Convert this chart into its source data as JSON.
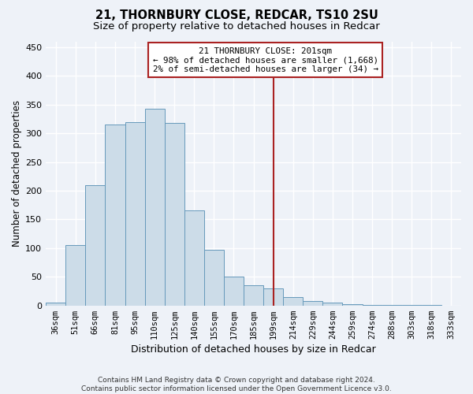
{
  "title1": "21, THORNBURY CLOSE, REDCAR, TS10 2SU",
  "title2": "Size of property relative to detached houses in Redcar",
  "xlabel": "Distribution of detached houses by size in Redcar",
  "ylabel": "Number of detached properties",
  "footer1": "Contains HM Land Registry data © Crown copyright and database right 2024.",
  "footer2": "Contains public sector information licensed under the Open Government Licence v3.0.",
  "categories": [
    "36sqm",
    "51sqm",
    "66sqm",
    "81sqm",
    "95sqm",
    "110sqm",
    "125sqm",
    "140sqm",
    "155sqm",
    "170sqm",
    "185sqm",
    "199sqm",
    "214sqm",
    "229sqm",
    "244sqm",
    "259sqm",
    "274sqm",
    "288sqm",
    "303sqm",
    "318sqm",
    "333sqm"
  ],
  "values": [
    5,
    105,
    210,
    315,
    320,
    343,
    318,
    165,
    97,
    50,
    35,
    30,
    15,
    8,
    5,
    3,
    1,
    1,
    1,
    1,
    0
  ],
  "bar_color": "#ccdce8",
  "bar_edge_color": "#6699bb",
  "bar_edge_width": 0.7,
  "vline_x_idx": 11,
  "vline_color": "#aa2222",
  "annotation_text": "21 THORNBURY CLOSE: 201sqm\n← 98% of detached houses are smaller (1,668)\n2% of semi-detached houses are larger (34) →",
  "annotation_box_color": "#aa2222",
  "ylim": [
    0,
    460
  ],
  "yticks": [
    0,
    50,
    100,
    150,
    200,
    250,
    300,
    350,
    400,
    450
  ],
  "background_color": "#eef2f8",
  "grid_color": "#ffffff",
  "title1_fontsize": 10.5,
  "title2_fontsize": 9.5,
  "ylabel_fontsize": 8.5,
  "xlabel_fontsize": 9,
  "tick_fontsize": 7.5,
  "footer_fontsize": 6.5
}
